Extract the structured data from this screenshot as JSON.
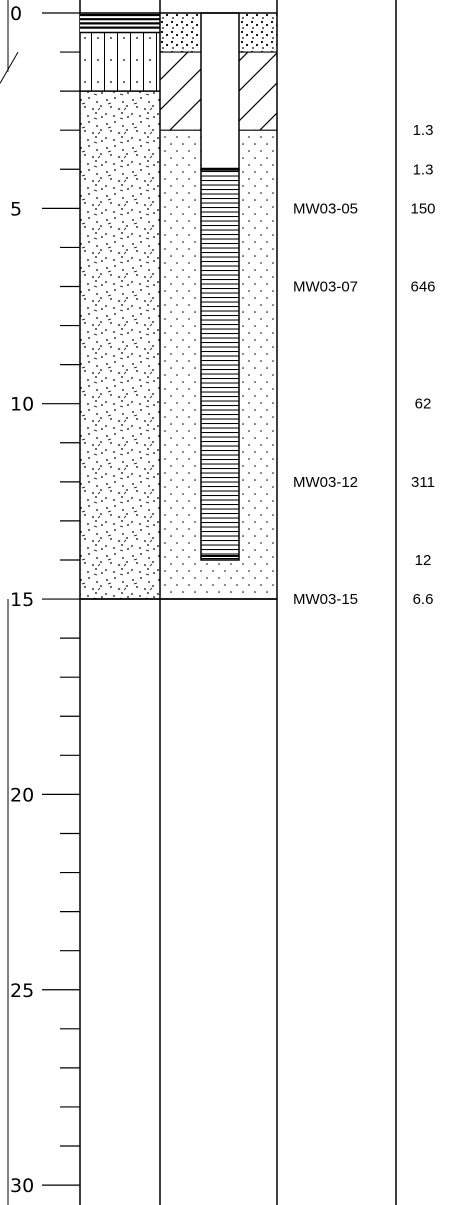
{
  "depth_axis": {
    "min": 0,
    "max": 30,
    "major_ticks": [
      0,
      5,
      10,
      15,
      20,
      25,
      30
    ],
    "major_labels": [
      "0",
      "5",
      "10",
      "15",
      "20",
      "25",
      "30"
    ],
    "minor_step": 1
  },
  "lithology": [
    {
      "top": 0,
      "bottom": 0.5,
      "pattern": "asphalt"
    },
    {
      "top": 0.5,
      "bottom": 2,
      "pattern": "fill"
    },
    {
      "top": 2,
      "bottom": 15,
      "pattern": "silty-sand"
    }
  ],
  "well_construction": {
    "surface_seal": {
      "top": 0,
      "bottom": 1
    },
    "bentonite_seal": {
      "top": 1,
      "bottom": 3
    },
    "filter_pack": {
      "top": 3,
      "bottom": 15
    },
    "casing": {
      "top": 0,
      "bottom": 4
    },
    "screen": {
      "top": 4,
      "bottom": 14
    }
  },
  "samples": [
    {
      "depth": 5,
      "id": "MW03-05"
    },
    {
      "depth": 7,
      "id": "MW03-07"
    },
    {
      "depth": 12,
      "id": "MW03-12"
    },
    {
      "depth": 15,
      "id": "MW03-15"
    }
  ],
  "readings": [
    {
      "depth": 3,
      "value": "1.3"
    },
    {
      "depth": 4,
      "value": "1.3"
    },
    {
      "depth": 5,
      "value": "150"
    },
    {
      "depth": 7,
      "value": "646"
    },
    {
      "depth": 10,
      "value": "62"
    },
    {
      "depth": 12,
      "value": "311"
    },
    {
      "depth": 14,
      "value": "12"
    },
    {
      "depth": 15,
      "value": "6.6"
    }
  ]
}
